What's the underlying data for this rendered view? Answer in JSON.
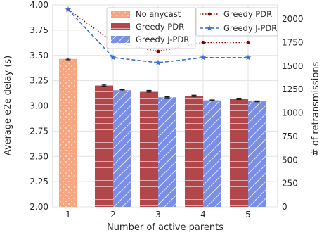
{
  "chart_data": {
    "type": "bar",
    "xlabel": "Number of active parents",
    "ylabel_left": "Average e2e delay (s)",
    "ylabel_right": "# of retransmissions",
    "categories": [
      "1",
      "2",
      "3",
      "4",
      "5"
    ],
    "ylim_left": [
      2.0,
      4.0
    ],
    "yticks_left": [
      "2.00",
      "2.25",
      "2.50",
      "2.75",
      "3.00",
      "3.25",
      "3.50",
      "3.75",
      "4.00"
    ],
    "ylim_right": [
      0,
      2150
    ],
    "yticks_right": [
      "0",
      "250",
      "500",
      "750",
      "1000",
      "1250",
      "1500",
      "1750",
      "2000"
    ],
    "grid": true,
    "bar_series": [
      {
        "name": "No anycast",
        "color": "#f8a582",
        "hatch": "dots",
        "values": [
          3.465,
          null,
          null,
          null,
          null
        ],
        "err": [
          0.008,
          null,
          null,
          null,
          null
        ]
      },
      {
        "name": "Greedy PDR",
        "color": "#b2474b",
        "hatch": "horizontal",
        "values": [
          null,
          3.205,
          3.145,
          3.1,
          3.07
        ],
        "err": [
          null,
          0.008,
          0.008,
          0.006,
          0.006
        ]
      },
      {
        "name": "Greedy J-PDR",
        "color": "#7a8ee6",
        "hatch": "diagonal",
        "values": [
          null,
          3.155,
          3.085,
          3.055,
          3.045
        ],
        "err": [
          null,
          0.006,
          0.005,
          0.004,
          0.004
        ]
      }
    ],
    "line_series": [
      {
        "name": "Greedy PDR",
        "color": "#8b0000",
        "style": "dotted",
        "marker": "circle",
        "values": [
          2100,
          1755,
          1655,
          1750,
          1750
        ]
      },
      {
        "name": "Greedy J-PDR",
        "color": "#3a6fd6",
        "style": "dashed",
        "marker": "star",
        "values": [
          2100,
          1590,
          1535,
          1590,
          1590
        ]
      }
    ],
    "legend_bars": [
      "No anycast",
      "Greedy PDR",
      "Greedy J-PDR"
    ],
    "legend_lines": [
      "Greedy PDR",
      "Greedy J-PDR"
    ]
  }
}
